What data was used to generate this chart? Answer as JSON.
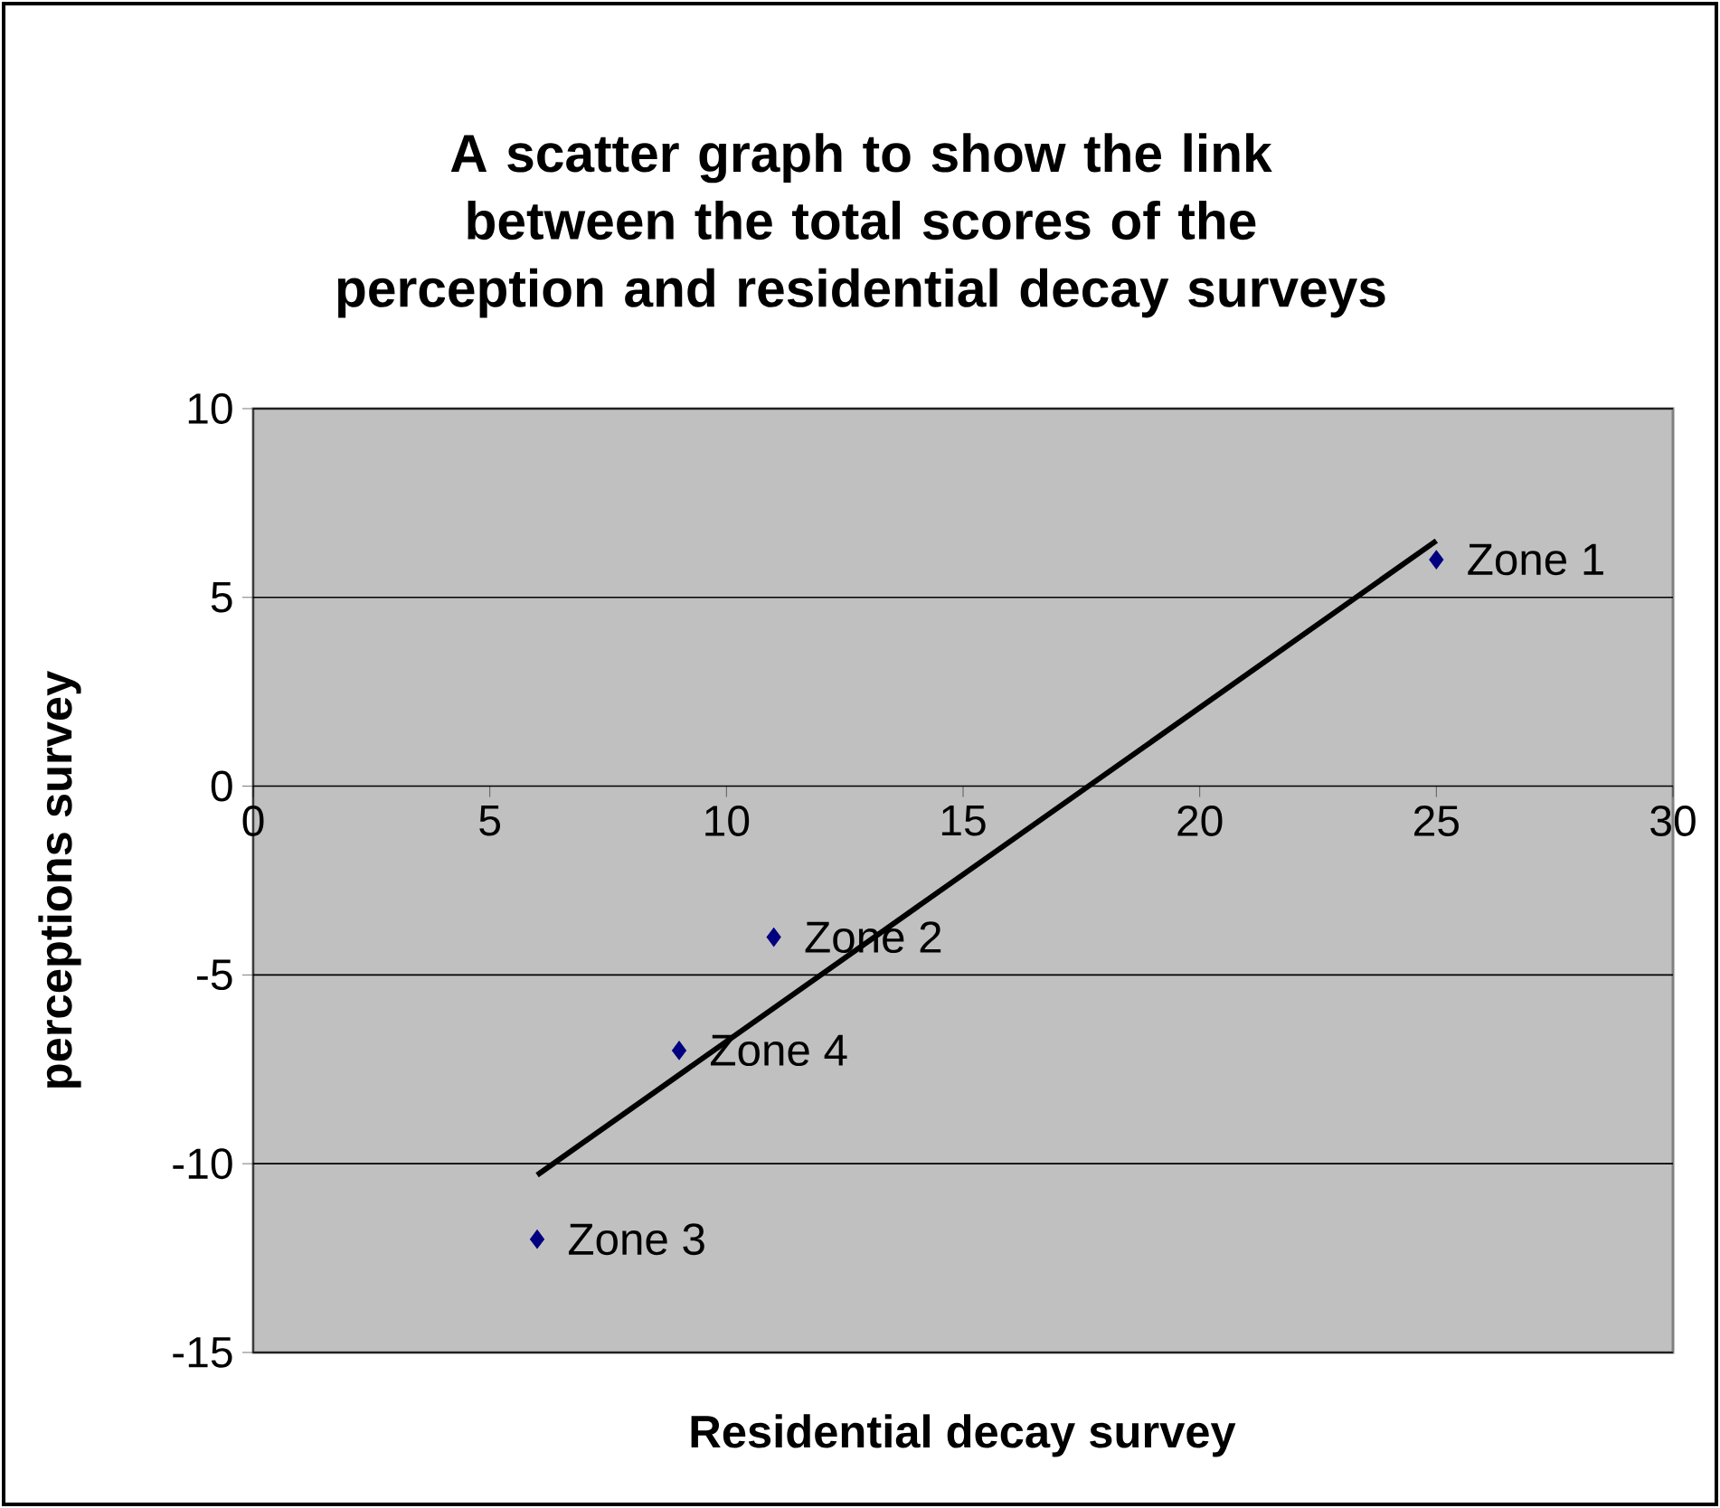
{
  "chart_data": {
    "type": "scatter",
    "title": "A scatter graph to show the link between the total scores of the perception and residential decay surveys",
    "xlabel": "Residential decay survey",
    "ylabel": "perceptions survey",
    "xlim": [
      0,
      30
    ],
    "ylim": [
      -15,
      10
    ],
    "xticks": [
      0,
      5,
      10,
      15,
      20,
      25,
      30
    ],
    "yticks": [
      -15,
      -10,
      -5,
      0,
      5,
      10
    ],
    "grid": "y",
    "marker": "diamond",
    "series": [
      {
        "type": "scatter",
        "color": "#000080",
        "x": [
          25,
          11,
          6,
          9
        ],
        "values": [
          6,
          -4,
          -12,
          -7
        ]
      },
      {
        "type": "line",
        "color": "#000000",
        "marker": "none",
        "x": [
          6,
          25
        ],
        "values": [
          -10.3,
          6.5
        ]
      }
    ],
    "annotations": [
      {
        "text": "Zone 1",
        "x": 25,
        "y": 6
      },
      {
        "text": "Zone 2",
        "x": 11,
        "y": -4
      },
      {
        "text": "Zone 3",
        "x": 6,
        "y": -12
      },
      {
        "text": "Zone 4",
        "x": 9,
        "y": -7
      }
    ]
  }
}
